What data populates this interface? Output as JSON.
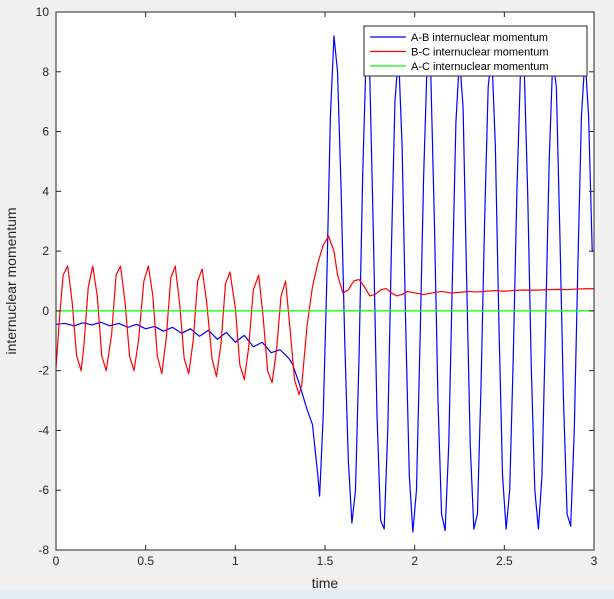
{
  "chart_data": {
    "type": "line",
    "title": "",
    "xlabel": "time",
    "ylabel": "internuclear momentum",
    "xlim": [
      0,
      3
    ],
    "ylim": [
      -8,
      10
    ],
    "xticks": [
      "0",
      "0.5",
      "1",
      "1.5",
      "2",
      "2.5",
      "3"
    ],
    "yticks": [
      "-8",
      "-6",
      "-4",
      "-2",
      "0",
      "2",
      "4",
      "6",
      "8",
      "10"
    ],
    "grid": false,
    "legend_position": "top-right",
    "series": [
      {
        "name": "A-B internuclear momentum",
        "color": "#0000ff",
        "x": [
          0,
          0.05,
          0.1,
          0.15,
          0.2,
          0.25,
          0.3,
          0.35,
          0.4,
          0.45,
          0.5,
          0.55,
          0.6,
          0.65,
          0.7,
          0.75,
          0.8,
          0.85,
          0.9,
          0.95,
          1.0,
          1.05,
          1.1,
          1.15,
          1.2,
          1.25,
          1.3,
          1.32,
          1.36,
          1.4,
          1.43,
          1.46,
          1.47,
          1.49,
          1.51,
          1.53,
          1.55,
          1.57,
          1.59,
          1.61,
          1.63,
          1.65,
          1.67,
          1.69,
          1.71,
          1.73,
          1.75,
          1.77,
          1.79,
          1.81,
          1.83,
          1.85,
          1.87,
          1.89,
          1.91,
          1.93,
          1.95,
          1.97,
          1.99,
          2.01,
          2.03,
          2.05,
          2.07,
          2.09,
          2.11,
          2.13,
          2.15,
          2.17,
          2.19,
          2.21,
          2.23,
          2.25,
          2.27,
          2.29,
          2.31,
          2.33,
          2.35,
          2.37,
          2.39,
          2.41,
          2.43,
          2.45,
          2.47,
          2.49,
          2.51,
          2.53,
          2.55,
          2.57,
          2.59,
          2.61,
          2.63,
          2.65,
          2.67,
          2.69,
          2.71,
          2.73,
          2.75,
          2.77,
          2.79,
          2.81,
          2.83,
          2.85,
          2.87,
          2.89,
          2.91,
          2.93,
          2.95,
          2.97,
          2.99,
          3.0
        ],
        "y": [
          -0.45,
          -0.42,
          -0.5,
          -0.4,
          -0.47,
          -0.38,
          -0.5,
          -0.42,
          -0.55,
          -0.45,
          -0.6,
          -0.52,
          -0.68,
          -0.55,
          -0.75,
          -0.6,
          -0.85,
          -0.65,
          -0.95,
          -0.72,
          -1.05,
          -0.82,
          -1.2,
          -1.05,
          -1.4,
          -1.3,
          -1.6,
          -1.8,
          -2.5,
          -3.3,
          -3.8,
          -5.5,
          -6.2,
          -3.5,
          1.0,
          6.5,
          9.2,
          8.0,
          4.0,
          -1.0,
          -5.0,
          -7.1,
          -6.0,
          -1.5,
          4.5,
          8.7,
          7.8,
          2.5,
          -3.5,
          -7.0,
          -7.3,
          -4.0,
          2.0,
          7.0,
          8.6,
          5.5,
          -0.5,
          -5.5,
          -7.4,
          -6.0,
          -1.0,
          4.5,
          8.4,
          7.9,
          3.0,
          -3.0,
          -6.8,
          -7.35,
          -4.5,
          1.0,
          6.3,
          8.5,
          6.8,
          1.0,
          -4.5,
          -7.3,
          -6.8,
          -2.5,
          3.0,
          7.5,
          8.6,
          5.5,
          -0.5,
          -5.5,
          -7.3,
          -6.0,
          -1.5,
          4.0,
          8.0,
          8.3,
          4.0,
          -1.8,
          -6.0,
          -7.3,
          -5.5,
          -0.5,
          5.0,
          8.4,
          7.5,
          2.5,
          -3.0,
          -6.8,
          -7.2,
          -4.0,
          1.5,
          6.5,
          8.5,
          6.5,
          2.0,
          2.0
        ]
      },
      {
        "name": "B-C internuclear momentum",
        "color": "#ff0000",
        "x": [
          0,
          0.02,
          0.04,
          0.065,
          0.09,
          0.115,
          0.14,
          0.155,
          0.18,
          0.205,
          0.23,
          0.255,
          0.28,
          0.31,
          0.335,
          0.36,
          0.385,
          0.41,
          0.435,
          0.46,
          0.49,
          0.515,
          0.54,
          0.565,
          0.59,
          0.615,
          0.64,
          0.665,
          0.69,
          0.715,
          0.74,
          0.765,
          0.79,
          0.815,
          0.84,
          0.87,
          0.895,
          0.92,
          0.945,
          0.97,
          1.0,
          1.025,
          1.05,
          1.075,
          1.1,
          1.13,
          1.155,
          1.18,
          1.205,
          1.23,
          1.255,
          1.28,
          1.305,
          1.33,
          1.355,
          1.37,
          1.4,
          1.43,
          1.46,
          1.49,
          1.52,
          1.55,
          1.57,
          1.6,
          1.63,
          1.66,
          1.69,
          1.72,
          1.75,
          1.78,
          1.81,
          1.84,
          1.87,
          1.9,
          1.93,
          1.96,
          2.0,
          2.05,
          2.1,
          2.15,
          2.2,
          2.25,
          2.3,
          2.35,
          2.4,
          2.45,
          2.5,
          2.55,
          2.6,
          2.65,
          2.7,
          2.75,
          2.8,
          2.85,
          2.9,
          2.95,
          3.0
        ],
        "y": [
          -1.9,
          -0.2,
          1.2,
          1.5,
          0.3,
          -1.5,
          -2.0,
          -1.2,
          0.8,
          1.5,
          0.5,
          -1.5,
          -2.0,
          -0.8,
          1.2,
          1.5,
          0.3,
          -1.5,
          -2.0,
          -1.0,
          1.0,
          1.5,
          0.5,
          -1.5,
          -2.1,
          -0.9,
          1.1,
          1.5,
          0.2,
          -1.6,
          -2.1,
          -1.0,
          1.0,
          1.4,
          0.3,
          -1.6,
          -2.2,
          -1.1,
          0.9,
          1.3,
          0.1,
          -1.8,
          -2.3,
          -1.2,
          0.7,
          1.2,
          -0.2,
          -2.0,
          -2.4,
          -1.3,
          0.5,
          1.0,
          -0.6,
          -2.3,
          -2.8,
          -2.5,
          -0.5,
          0.8,
          1.6,
          2.2,
          2.5,
          2.0,
          1.2,
          0.6,
          0.7,
          1.0,
          1.05,
          0.8,
          0.5,
          0.55,
          0.7,
          0.75,
          0.6,
          0.5,
          0.55,
          0.65,
          0.6,
          0.55,
          0.6,
          0.65,
          0.6,
          0.62,
          0.65,
          0.63,
          0.66,
          0.68,
          0.66,
          0.68,
          0.7,
          0.69,
          0.7,
          0.71,
          0.72,
          0.71,
          0.73,
          0.74,
          0.74
        ]
      },
      {
        "name": "A-C internuclear momentum",
        "color": "#00ff00",
        "x": [
          0,
          3
        ],
        "y": [
          0,
          0
        ]
      }
    ]
  }
}
